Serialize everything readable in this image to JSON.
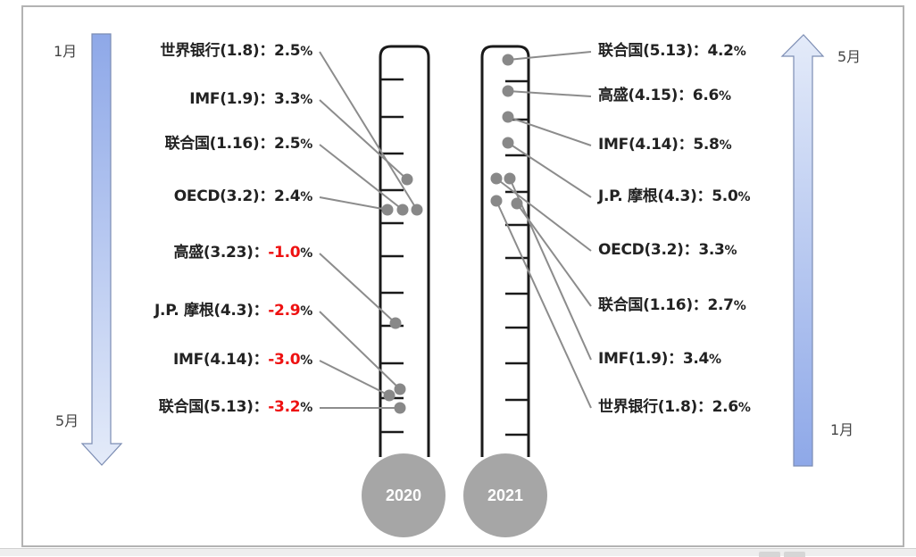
{
  "colors": {
    "arrow_fill_dark": "#8ea8e8",
    "arrow_fill_light": "#e4ebf9",
    "arrow_stroke": "#7c8db3",
    "dot": "#888888",
    "leader": "#8c8c8c",
    "bulb": "#a6a6a6",
    "negative": "#ee1111",
    "tube": "#1a1a1a"
  },
  "left_axis": {
    "top_label": "1月",
    "bottom_label": "5月",
    "direction": "down"
  },
  "right_axis": {
    "top_label": "5月",
    "bottom_label": "1月",
    "direction": "up"
  },
  "thermometers": [
    {
      "year": "2020"
    },
    {
      "year": "2021"
    }
  ],
  "chart_data": {
    "type": "diagram",
    "title": "",
    "description": "Two thermometers showing successive GDP growth forecasts (2020 and 2021) by institution, ordered chronologically by forecast date",
    "series": [
      {
        "name": "2020",
        "side": "left",
        "order": "top = January, bottom = May",
        "items": [
          {
            "institution": "世界银行",
            "date": "1.8",
            "label": "世界银行(1.8)：",
            "value": "2.5",
            "unit": "%",
            "negative": false
          },
          {
            "institution": "IMF",
            "date": "1.9",
            "label": "IMF(1.9)：",
            "value": "3.3",
            "unit": "%",
            "negative": false
          },
          {
            "institution": "联合国",
            "date": "1.16",
            "label": "联合国(1.16)：",
            "value": "2.5",
            "unit": "%",
            "negative": false
          },
          {
            "institution": "OECD",
            "date": "3.2",
            "label": "OECD(3.2)：",
            "value": "2.4",
            "unit": "%",
            "negative": false
          },
          {
            "institution": "高盛",
            "date": "3.23",
            "label": "高盛(3.23)：",
            "value": "-1.0",
            "unit": "%",
            "negative": true
          },
          {
            "institution": "J.P. 摩根",
            "date": "4.3",
            "label": "J.P. 摩根(4.3)：",
            "value": "-2.9",
            "unit": "%",
            "negative": true
          },
          {
            "institution": "IMF",
            "date": "4.14",
            "label": "IMF(4.14)：",
            "value": "-3.0",
            "unit": "%",
            "negative": true
          },
          {
            "institution": "联合国",
            "date": "5.13",
            "label": "联合国(5.13)：",
            "value": "-3.2",
            "unit": "%",
            "negative": true
          }
        ]
      },
      {
        "name": "2021",
        "side": "right",
        "order": "top = May, bottom = January",
        "items": [
          {
            "institution": "联合国",
            "date": "5.13",
            "label": "联合国(5.13)：",
            "value": "4.2",
            "unit": "%",
            "negative": false
          },
          {
            "institution": "高盛",
            "date": "4.15",
            "label": "高盛(4.15)：",
            "value": "6.6",
            "unit": "%",
            "negative": false
          },
          {
            "institution": "IMF",
            "date": "4.14",
            "label": "IMF(4.14)：",
            "value": "5.8",
            "unit": "%",
            "negative": false
          },
          {
            "institution": "J.P. 摩根",
            "date": "4.3",
            "label": "J.P. 摩根(4.3)：",
            "value": "5.0",
            "unit": "%",
            "negative": false
          },
          {
            "institution": "OECD",
            "date": "3.2",
            "label": "OECD(3.2)：",
            "value": "3.3",
            "unit": "%",
            "negative": false
          },
          {
            "institution": "联合国",
            "date": "1.16",
            "label": "联合国(1.16)：",
            "value": "2.7",
            "unit": "%",
            "negative": false
          },
          {
            "institution": "IMF",
            "date": "1.9",
            "label": "IMF(1.9)：",
            "value": "3.4",
            "unit": "%",
            "negative": false
          },
          {
            "institution": "世界银行",
            "date": "1.8",
            "label": "世界银行(1.8)：",
            "value": "2.6",
            "unit": "%",
            "negative": false
          }
        ]
      }
    ]
  }
}
